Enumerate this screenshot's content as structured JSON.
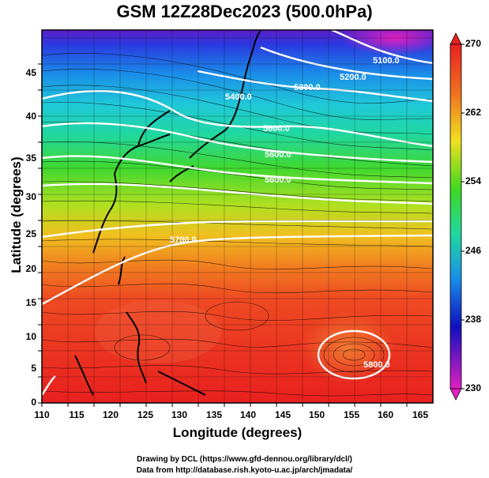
{
  "title": "GSM 12Z28Dec2023 (500.0hPa)",
  "x_axis": {
    "label": "Longitude (degrees)",
    "ticks": [
      "110",
      "115",
      "120",
      "125",
      "130",
      "135",
      "140",
      "145",
      "150",
      "155",
      "160",
      "165"
    ]
  },
  "y_axis": {
    "label": "Latitude (degrees)",
    "ticks": [
      "0",
      "5",
      "10",
      "15",
      "20",
      "25",
      "30",
      "35",
      "40",
      "45"
    ]
  },
  "colorbar": {
    "ticks": [
      "230",
      "238",
      "246",
      "254",
      "262",
      "270"
    ],
    "colors": [
      "#e020c0",
      "#1010c0",
      "#1a8fe8",
      "#20d8a0",
      "#40d820",
      "#f0e020",
      "#f07020",
      "#e82020"
    ]
  },
  "contour_labels": [
    "5100.0",
    "5200.0",
    "5300.0",
    "5400.0",
    "5600.0",
    "5600.0",
    "5600.0",
    "5700.0",
    "5800.0",
    "5880.0"
  ],
  "credits": {
    "line1": "Drawing by DCL (https://www.gfd-dennou.org/library/dcl/)",
    "line2": "Data from http://database.rish.kyoto-u.ac.jp/arch/jmadata/"
  }
}
